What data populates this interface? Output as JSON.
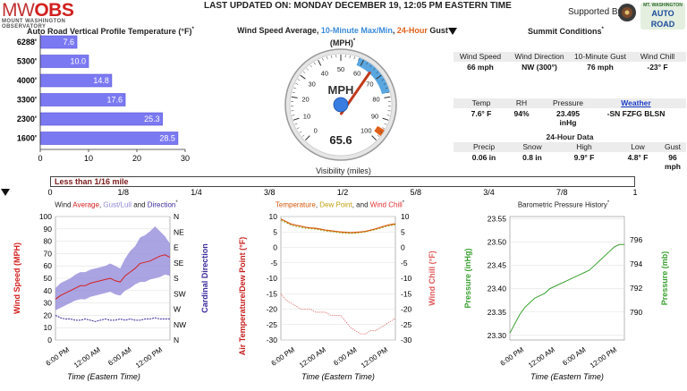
{
  "header": {
    "logo_mw": "MW",
    "logo_obs": "OBS",
    "logo_sub": "MOUNT WASHINGTON OBSERVATORY",
    "last_updated": "LAST UPDATED ON: MONDAY DECEMBER 19, 12:05 PM EASTERN TIME",
    "supported_by": "Supported By:",
    "sponsor_logo_line1": "MT. WASHINGTON",
    "sponsor_logo_line2": "AUTO ROAD"
  },
  "profile": {
    "title": "Auto Road Vertical Profile Temperature (°F)",
    "title_sup": "*",
    "colors": {
      "bar": "#7b79f2",
      "bar_border": "#5553d8"
    },
    "chart_data": {
      "type": "bar",
      "orientation": "horizontal",
      "categories": [
        "6288'",
        "5300'",
        "4000'",
        "3300'",
        "2300'",
        "1600'"
      ],
      "values": [
        7.6,
        10.0,
        14.8,
        17.6,
        25.3,
        28.5
      ],
      "labels": [
        "7.6",
        "10.0",
        "14.8",
        "17.6",
        "25.3",
        "28.5"
      ],
      "xticks": [
        "0",
        "10",
        "20",
        "30"
      ],
      "xlim": [
        0,
        30
      ]
    }
  },
  "gauge": {
    "title_prefix": "Wind Speed Average, ",
    "title_max": "10-Minute Max/Min",
    "title_sep": ", ",
    "title_gust": "24-Hour",
    "title_suffix": " Gust",
    "title_unit": "(MPH)",
    "title_sup": "*",
    "unit_label": "MPH",
    "value_text": "65.6",
    "colors": {
      "max_band": "#5aa6e0",
      "gust": "#e0601a",
      "needle": "#c0391b",
      "hub": "#3a7de0"
    },
    "chart_data": {
      "type": "gauge",
      "min": 0,
      "max": 100,
      "value": 65.6,
      "ticks": [
        "0",
        "10",
        "20",
        "30",
        "40",
        "50",
        "60",
        "70",
        "80",
        "90",
        "100"
      ],
      "max_band": [
        58,
        78
      ],
      "gust": 96
    }
  },
  "summit": {
    "title": "Summit Conditions",
    "title_sup": "*",
    "row1": {
      "labels": [
        "Wind Speed",
        "Wind Direction",
        "10-Minute Gust",
        "Wind Chill"
      ],
      "values": [
        "66 mph",
        "NW (300°)",
        "76 mph",
        "-23° F"
      ]
    },
    "row2": {
      "labels": [
        "Temp",
        "RH",
        "Pressure",
        "Weather"
      ],
      "values": [
        "7.6° F",
        "94%",
        "23.495",
        "-SN FZFG BLSN"
      ],
      "pressure_unit": "inHg"
    },
    "data24": {
      "title": "24-Hour Data",
      "labels": [
        "Precip",
        "Snow",
        "High",
        "Low",
        "Gust"
      ],
      "values": [
        "0.06 in",
        "0.8 in",
        "9.9° F",
        "4.8° F",
        "96"
      ],
      "gust_unit": "mph"
    }
  },
  "visibility": {
    "title": "Visibility (miles)",
    "value_text": "Less than 1/16 mile",
    "ticks": [
      "0",
      "1/8",
      "1/4",
      "3/8",
      "1/2",
      "5/8",
      "3/4",
      "7/8",
      "1"
    ],
    "chart_data": {
      "type": "bar",
      "value": 0.0625,
      "xlim": [
        0,
        1
      ]
    }
  },
  "wind_chart": {
    "title_prefix": "Wind ",
    "title_avg": "Average",
    "title_sep1": ", ",
    "title_gust": "Gust/Lull",
    "title_and": " and ",
    "title_dir": "Direction",
    "title_sup": "*",
    "ylabel_left": "Wind Speed (MPH)",
    "ylabel_right": "Cardinal Direction",
    "xlabel": "Time (Eastern Time)",
    "colors": {
      "avg": "#d42020",
      "band": "#8f86d8",
      "dir": "#3a2a9a"
    },
    "chart_data": {
      "type": "line",
      "yticks": [
        "0",
        "10",
        "20",
        "30",
        "40",
        "50",
        "60",
        "70",
        "80",
        "90",
        "100"
      ],
      "ylim": [
        0,
        100
      ],
      "direction_ticks": [
        "N",
        "NE",
        "E",
        "SE",
        "S",
        "SW",
        "W",
        "NW",
        "N"
      ],
      "xticks": [
        "6:00 PM",
        "12:00 AM",
        "6:00 AM",
        "12:00 PM"
      ],
      "series": [
        {
          "values": [
            33,
            36,
            38,
            40,
            42,
            44,
            44,
            46,
            47,
            48,
            49,
            50,
            48,
            47,
            52,
            55,
            58,
            62,
            63,
            64,
            66,
            68,
            69,
            67
          ]
        },
        {
          "values": [
            42,
            46,
            48,
            50,
            53,
            55,
            55,
            57,
            58,
            59,
            60,
            62,
            60,
            58,
            66,
            72,
            76,
            83,
            85,
            88,
            92,
            88,
            84,
            78
          ]
        },
        {
          "values": [
            24,
            26,
            28,
            30,
            32,
            33,
            33,
            35,
            36,
            37,
            38,
            39,
            37,
            36,
            40,
            42,
            45,
            47,
            47,
            49,
            50,
            51,
            53,
            52
          ]
        },
        {
          "values": [
            20,
            18,
            17,
            17,
            16,
            16,
            17,
            16,
            15,
            16,
            17,
            16,
            16,
            17,
            16,
            17,
            16,
            16,
            17,
            17,
            18,
            17,
            17,
            17
          ]
        }
      ]
    }
  },
  "temp_chart": {
    "title_temp": "Temperature",
    "title_sep1": ", ",
    "title_dew": "Dew Point",
    "title_and": ", and ",
    "title_chill": "Wind Chill",
    "title_sup": "*",
    "ylabel_left": "Air Temperature/Dew Point (°F)",
    "ylabel_right": "Wind Chill (°F)",
    "xlabel": "Time (Eastern Time)",
    "colors": {
      "temp": "#d45a0a",
      "dew": "#9aa81a",
      "chill": "#e07070"
    },
    "chart_data": {
      "type": "line",
      "yticks": [
        "10",
        "5",
        "0",
        "-5",
        "-10",
        "-15",
        "-20",
        "-25",
        "-30"
      ],
      "ylim": [
        -30,
        10
      ],
      "xticks": [
        "6:00 PM",
        "12:00 AM",
        "6:00 AM",
        "12:00 PM"
      ],
      "series": [
        {
          "values": [
            9.2,
            8.4,
            7.6,
            7.2,
            6.9,
            6.5,
            6.3,
            6.2,
            5.9,
            5.6,
            5.4,
            5.2,
            5.0,
            4.9,
            4.8,
            4.9,
            5.0,
            5.2,
            5.6,
            6.0,
            6.5,
            7.0,
            7.4,
            7.6
          ]
        },
        {
          "values": [
            8.7,
            8.1,
            7.2,
            6.8,
            6.5,
            6.2,
            6.1,
            5.9,
            5.6,
            5.3,
            5.1,
            4.9,
            4.7,
            4.6,
            4.5,
            4.6,
            4.8,
            5.0,
            5.4,
            5.8,
            6.2,
            6.7,
            7.1,
            7.3
          ]
        },
        {
          "values": [
            -15,
            -17,
            -18,
            -19,
            -20,
            -20,
            -20,
            -21,
            -21,
            -21,
            -22,
            -22,
            -22,
            -24,
            -26,
            -27,
            -28,
            -28,
            -27,
            -27,
            -26,
            -25,
            -24,
            -23
          ]
        }
      ]
    }
  },
  "pressure_chart": {
    "title": "Barometric Pressure History",
    "title_sup": "*",
    "ylabel_left": "Pressure (inHg)",
    "ylabel_right": "Pressure (mb)",
    "xlabel": "Time (Eastern Time)",
    "colors": {
      "line": "#3aa030"
    },
    "chart_data": {
      "type": "line",
      "yticks": [
        "23.55",
        "23.50",
        "23.45",
        "23.40",
        "23.35",
        "23.30"
      ],
      "ylim": [
        23.29,
        23.555
      ],
      "right_ticks": [
        "796",
        "794",
        "792",
        "790"
      ],
      "xticks": [
        "6:00 PM",
        "12:00 AM",
        "6:00 AM",
        "12:00 PM"
      ],
      "series": [
        {
          "values": [
            23.305,
            23.325,
            23.345,
            23.36,
            23.37,
            23.38,
            23.385,
            23.39,
            23.4,
            23.405,
            23.41,
            23.415,
            23.42,
            23.425,
            23.43,
            23.435,
            23.44,
            23.45,
            23.46,
            23.47,
            23.48,
            23.49,
            23.495,
            23.495
          ]
        }
      ]
    }
  }
}
